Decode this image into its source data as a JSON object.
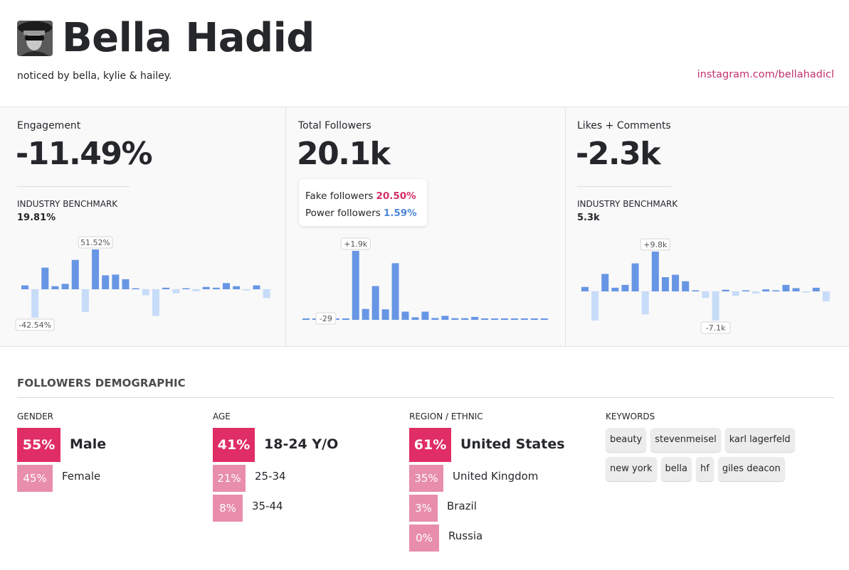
{
  "header": {
    "name": "Bella Hadid",
    "bio": "noticed by bella, kylie & hailey.",
    "instagram_link": "instagram.com/bellahadicl",
    "avatar_alt": "profile photo"
  },
  "colors": {
    "brand_pink": "#e02d65",
    "secondary_pink": "#e88dab",
    "link_pink": "#c2306b",
    "bar_positive": "#6796e4",
    "bar_negative": "#c7dcf8",
    "power_blue": "#4e87d9"
  },
  "stats": {
    "engagement": {
      "label": "Engagement",
      "value": "-11.49%",
      "benchmark_label": "INDUSTRY BENCHMARK",
      "benchmark_value": "19.81%"
    },
    "followers": {
      "label": "Total Followers",
      "value": "20.1k",
      "fake_label": "Fake followers",
      "fake_value": "20.50%",
      "power_label": "Power followers",
      "power_value": "1.59%"
    },
    "likes": {
      "label": "Likes + Comments",
      "value": "-2.3k",
      "benchmark_label": "INDUSTRY BENCHMARK",
      "benchmark_value": "5.3k"
    }
  },
  "chart_data": [
    {
      "type": "bar",
      "title": "Engagement change",
      "unit": "%",
      "values": [
        5,
        -42.54,
        28,
        4,
        7,
        38,
        -34,
        51.52,
        18,
        19,
        13,
        0.3,
        -9,
        -40,
        2,
        -6,
        0.3,
        -3,
        3,
        2,
        8,
        4,
        -2,
        5,
        -13
      ],
      "max_label": "51.52%",
      "min_label": "-42.54%",
      "max_index": 7,
      "min_index": 1
    },
    {
      "type": "bar",
      "title": "Follower change",
      "unit": "",
      "values": [
        20,
        20,
        -29,
        5,
        20,
        1900,
        300,
        930,
        290,
        1560,
        225,
        70,
        225,
        50,
        110,
        45,
        45,
        80,
        5,
        10,
        10,
        15,
        10,
        10,
        10
      ],
      "max_label": "+1.9k",
      "min_label": "-29",
      "max_index": 5,
      "min_index": 2
    },
    {
      "type": "bar",
      "title": "Likes + Comments change",
      "unit": "k",
      "values": [
        1.1,
        -7.1,
        4.3,
        0.9,
        1.6,
        6.9,
        -5.6,
        9.8,
        3.5,
        4.1,
        2.5,
        0.05,
        -1.6,
        -7.1,
        0.4,
        -1.1,
        0.05,
        -0.5,
        0.5,
        0.2,
        1.6,
        0.8,
        -0.3,
        0.9,
        -2.4
      ],
      "max_label": "+9.8k",
      "min_label": "-7.1k",
      "max_index": 7,
      "min_index": 13
    }
  ],
  "demographic": {
    "title": "FOLLOWERS DEMOGRAPHIC",
    "gender": {
      "label": "GENDER",
      "rows": [
        {
          "pct": "55%",
          "name": "Male"
        },
        {
          "pct": "45%",
          "name": "Female"
        }
      ]
    },
    "age": {
      "label": "AGE",
      "rows": [
        {
          "pct": "41%",
          "name": "18-24 Y/O"
        },
        {
          "pct": "21%",
          "name": "25-34"
        },
        {
          "pct": "8%",
          "name": "35-44"
        }
      ]
    },
    "region": {
      "label": "REGION / ETHNIC",
      "rows": [
        {
          "pct": "61%",
          "name": "United States"
        },
        {
          "pct": "35%",
          "name": "United Kingdom"
        },
        {
          "pct": "3%",
          "name": "Brazil"
        },
        {
          "pct": "0%",
          "name": "Russia"
        }
      ]
    },
    "keywords": {
      "label": "KEYWORDS",
      "items": [
        "beauty",
        "stevenmeisel",
        "karl lagerfeld",
        "new york",
        "bella",
        "hf",
        "giles deacon"
      ]
    }
  }
}
